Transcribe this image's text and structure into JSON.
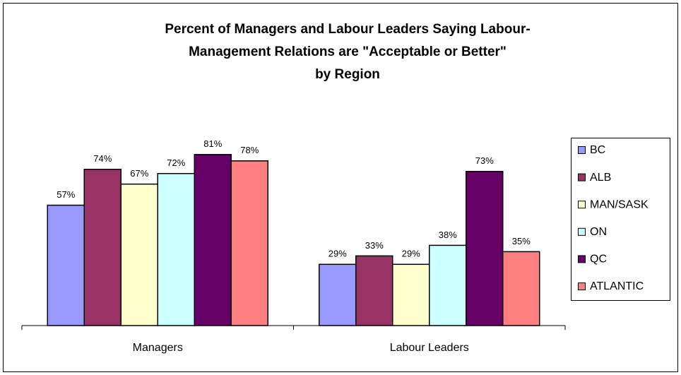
{
  "chart_data": {
    "type": "bar",
    "title": [
      "Percent of Managers and Labour Leaders Saying Labour-",
      "Management Relations are \"Acceptable or Better\"",
      "by Region"
    ],
    "categories": [
      "Managers",
      "Labour Leaders"
    ],
    "series": [
      {
        "name": "BC",
        "color": "#9999ff",
        "values": [
          57,
          29
        ],
        "value_labels": [
          "57%",
          "29%"
        ]
      },
      {
        "name": "ALB",
        "color": "#993366",
        "values": [
          74,
          33
        ],
        "value_labels": [
          "74%",
          "33%"
        ]
      },
      {
        "name": "MAN/SASK",
        "color": "#ffffcc",
        "values": [
          67,
          29
        ],
        "value_labels": [
          "67%",
          "29%"
        ]
      },
      {
        "name": "ON",
        "color": "#ccffff",
        "values": [
          72,
          38
        ],
        "value_labels": [
          "72%",
          "38%"
        ]
      },
      {
        "name": "QC",
        "color": "#660066",
        "values": [
          81,
          73
        ],
        "value_labels": [
          "81%",
          "73%"
        ]
      },
      {
        "name": "ATLANTIC",
        "color": "#ff8080",
        "values": [
          78,
          35
        ],
        "value_labels": [
          "78%",
          "35%"
        ]
      }
    ],
    "ylim": [
      0,
      100
    ],
    "legend": "right"
  }
}
